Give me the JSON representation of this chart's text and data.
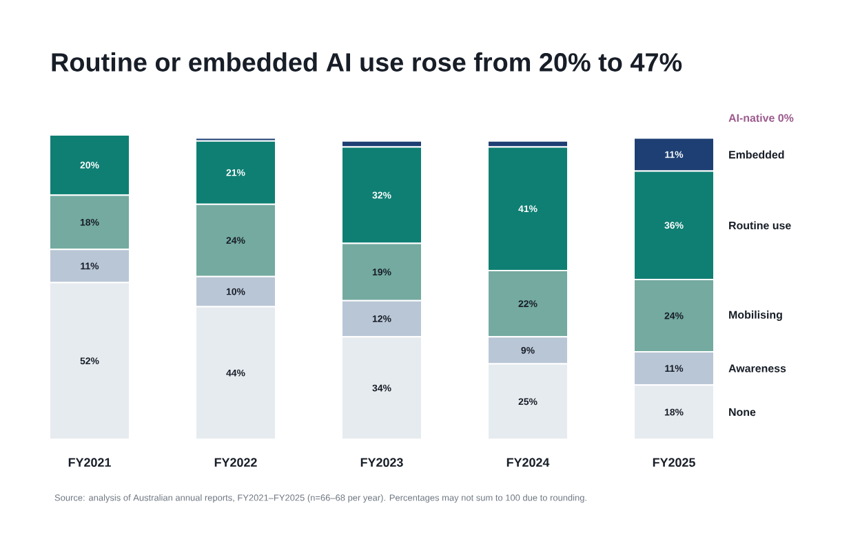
{
  "chart_data": {
    "type": "bar",
    "stacked": true,
    "title": "Routine or embedded AI use rose from 20% to 47%",
    "categories": [
      "FY2021",
      "FY2022",
      "FY2023",
      "FY2024",
      "FY2025"
    ],
    "series": [
      {
        "name": "None",
        "color": "#e6ebef",
        "values": [
          52,
          44,
          34,
          25,
          18
        ],
        "value_labels": [
          "52%",
          "44%",
          "34%",
          "25%",
          "18%"
        ]
      },
      {
        "name": "Awareness",
        "color": "#b9c6d6",
        "values": [
          11,
          10,
          12,
          9,
          11
        ],
        "value_labels": [
          "11%",
          "10%",
          "12%",
          "9%",
          "11%"
        ]
      },
      {
        "name": "Mobilising",
        "color": "#74aaa0",
        "values": [
          18,
          24,
          19,
          22,
          24
        ],
        "value_labels": [
          "18%",
          "24%",
          "19%",
          "22%",
          "24%"
        ]
      },
      {
        "name": "Routine use",
        "color": "#0f7f73",
        "values": [
          20,
          21,
          32,
          41,
          36
        ],
        "value_labels": [
          "20%",
          "21%",
          "32%",
          "41%",
          "36%"
        ]
      },
      {
        "name": "Embedded",
        "color": "#1e3f73",
        "values": [
          0,
          1,
          2,
          2,
          11
        ],
        "value_labels": [
          null,
          null,
          null,
          null,
          "11%"
        ]
      }
    ],
    "annotations": [
      "AI-native 0%",
      "Source: analysis of Australian annual reports, FY2021–FY2025 (n=66–68 per year). Percentages may not sum to 100 due to rounding."
    ]
  }
}
